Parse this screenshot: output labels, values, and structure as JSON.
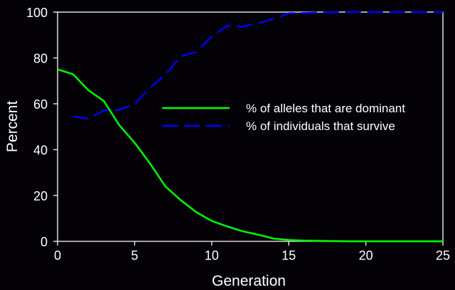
{
  "chart_data": {
    "type": "line",
    "title": "",
    "xlabel": "Generation",
    "ylabel": "Percent",
    "xlim": [
      0,
      25
    ],
    "ylim": [
      0,
      100
    ],
    "xticks": [
      0,
      5,
      10,
      15,
      20,
      25
    ],
    "yticks": [
      0,
      20,
      40,
      60,
      80,
      100
    ],
    "grid": false,
    "legend_position": "center-right",
    "background": "#040207",
    "series": [
      {
        "name": "% of alleles that are dominant",
        "color": "#00ff00",
        "style": "solid",
        "x": [
          0,
          1,
          2,
          3,
          4,
          5,
          6,
          7,
          8,
          9,
          10,
          11,
          12,
          13,
          14,
          15,
          16,
          17,
          18,
          19,
          20,
          21,
          22,
          23,
          24,
          25
        ],
        "y": [
          75,
          72.9,
          65.9,
          61.2,
          50.7,
          43,
          33.9,
          23.9,
          17.9,
          12.7,
          8.9,
          6.5,
          4.4,
          2.9,
          1.2,
          0.6,
          0.3,
          0.2,
          0.1,
          0,
          0,
          0,
          0,
          0,
          0,
          0
        ]
      },
      {
        "name": "% of individuals that survive",
        "color": "#0000ff",
        "style": "dashed",
        "x": [
          1,
          2,
          3,
          4,
          5,
          6,
          7,
          8,
          9,
          10,
          11,
          12,
          13,
          14,
          15,
          16,
          17,
          18,
          19,
          20,
          21,
          22,
          23,
          24,
          25
        ],
        "y": [
          54.5,
          53.5,
          57.1,
          57.3,
          59.9,
          66.9,
          72.8,
          80.7,
          82.6,
          89.3,
          94.1,
          93.6,
          95.1,
          97,
          99.5,
          99.6,
          99.8,
          100,
          100,
          100,
          100,
          100,
          100,
          100,
          100
        ]
      }
    ]
  }
}
